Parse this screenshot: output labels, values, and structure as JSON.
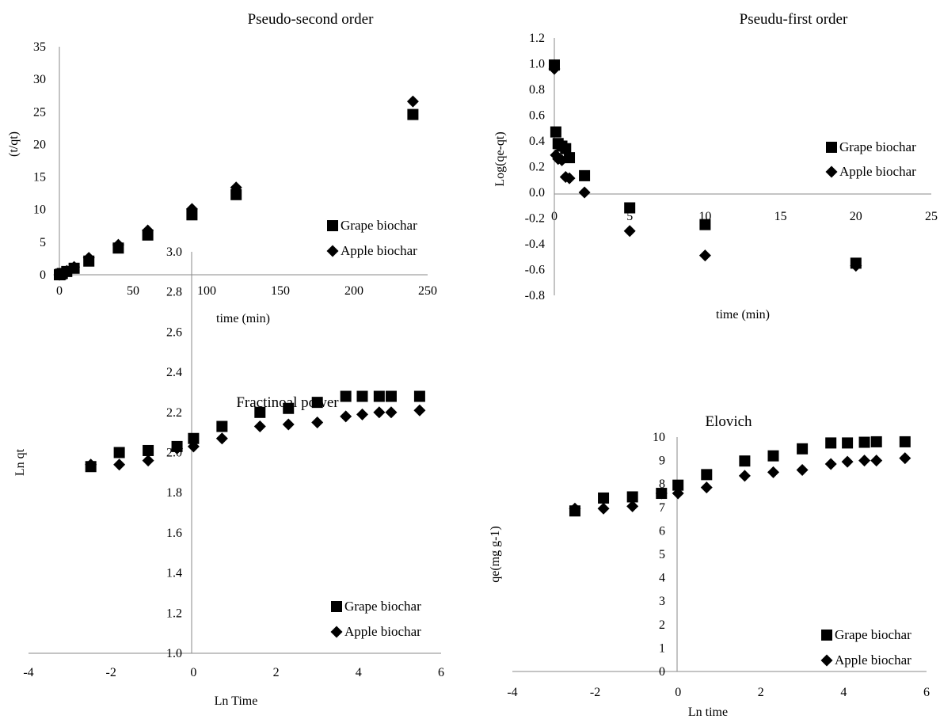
{
  "chart_data": [
    {
      "type": "scatter",
      "title": "Pseudo-second order",
      "xlabel": "time (min)",
      "ylabel": "(t/qt)",
      "xlim": [
        0,
        250
      ],
      "ylim": [
        0,
        35
      ],
      "xticks": [
        "0",
        "50",
        "100",
        "150",
        "200",
        "250"
      ],
      "yticks": [
        "0",
        "5",
        "10",
        "15",
        "20",
        "25",
        "30",
        "35"
      ],
      "legend_position": "right",
      "series": [
        {
          "name": "Grape biochar",
          "marker": "square",
          "x": [
            0,
            0.25,
            0.5,
            1,
            2,
            5,
            10,
            20,
            40,
            60,
            90,
            120,
            240
          ],
          "y": [
            0,
            0.02,
            0.05,
            0.1,
            0.2,
            0.5,
            1.0,
            2.1,
            4.1,
            6.1,
            9.2,
            12.3,
            24.6
          ]
        },
        {
          "name": "Apple biochar",
          "marker": "diamond",
          "x": [
            0,
            0.25,
            0.5,
            1,
            2,
            5,
            10,
            20,
            40,
            60,
            90,
            120,
            240
          ],
          "y": [
            0,
            0.03,
            0.06,
            0.12,
            0.25,
            0.6,
            1.2,
            2.6,
            4.6,
            6.8,
            10.1,
            13.4,
            26.6
          ]
        }
      ]
    },
    {
      "type": "scatter",
      "title": "Pseudu-first order",
      "xlabel": "time (min)",
      "ylabel": "Log(qe-qt)",
      "xlim": [
        0,
        25
      ],
      "ylim": [
        -0.8,
        1.2
      ],
      "xticks": [
        "0",
        "5",
        "10",
        "15",
        "20",
        "25"
      ],
      "yticks": [
        "-0.8",
        "-0.6",
        "-0.4",
        "-0.2",
        "0.0",
        "0.2",
        "0.4",
        "0.6",
        "0.8",
        "1.0",
        "1.2"
      ],
      "legend_position": "right",
      "series": [
        {
          "name": "Grape biochar",
          "marker": "square",
          "x": [
            0,
            0.1,
            0.25,
            0.5,
            0.75,
            1,
            2,
            5,
            10,
            20
          ],
          "y": [
            0.99,
            0.47,
            0.38,
            0.36,
            0.34,
            0.27,
            0.13,
            -0.12,
            -0.25,
            -0.55
          ]
        },
        {
          "name": "Apple biochar",
          "marker": "diamond",
          "x": [
            0,
            0.1,
            0.25,
            0.5,
            0.75,
            1,
            2,
            5,
            10,
            20
          ],
          "y": [
            0.96,
            0.29,
            0.26,
            0.25,
            0.12,
            0.11,
            0.0,
            -0.3,
            -0.49,
            -0.57
          ]
        }
      ]
    },
    {
      "type": "scatter",
      "title": "Fractinoal power",
      "xlabel": "Ln Time",
      "ylabel": "Ln qt",
      "xlim": [
        -4,
        6
      ],
      "ylim": [
        1.0,
        3.0
      ],
      "xticks": [
        "-4",
        "-2",
        "0",
        "2",
        "4",
        "6"
      ],
      "yticks": [
        "1.0",
        "1.2",
        "1.4",
        "1.6",
        "1.8",
        "2.0",
        "2.2",
        "2.4",
        "2.6",
        "2.8",
        "3.0"
      ],
      "legend_position": "bottom-right",
      "series": [
        {
          "name": "Grape biochar",
          "marker": "square",
          "x": [
            -2.49,
            -1.8,
            -1.1,
            -0.4,
            0,
            0.69,
            1.61,
            2.3,
            3.0,
            3.69,
            4.09,
            4.5,
            4.79,
            5.48
          ],
          "y": [
            1.93,
            2.0,
            2.01,
            2.03,
            2.07,
            2.13,
            2.2,
            2.22,
            2.25,
            2.28,
            2.28,
            2.28,
            2.28,
            2.28
          ]
        },
        {
          "name": "Apple biochar",
          "marker": "diamond",
          "x": [
            -2.49,
            -1.8,
            -1.1,
            -0.4,
            0,
            0.69,
            1.61,
            2.3,
            3.0,
            3.69,
            4.09,
            4.5,
            4.79,
            5.48
          ],
          "y": [
            1.94,
            1.94,
            1.96,
            2.02,
            2.03,
            2.07,
            2.13,
            2.14,
            2.15,
            2.18,
            2.19,
            2.2,
            2.2,
            2.21
          ]
        }
      ]
    },
    {
      "type": "scatter",
      "title": "Elovich",
      "xlabel": "Ln time",
      "ylabel": "qe(mg g-1)",
      "xlim": [
        -4,
        6
      ],
      "ylim": [
        0,
        10
      ],
      "xticks": [
        "-4",
        "-2",
        "0",
        "2",
        "4",
        "6"
      ],
      "yticks": [
        "0",
        "1",
        "2",
        "3",
        "4",
        "5",
        "6",
        "7",
        "8",
        "9",
        "10"
      ],
      "legend_position": "bottom-right",
      "series": [
        {
          "name": "Grape biochar",
          "marker": "square",
          "x": [
            -2.49,
            -1.8,
            -1.1,
            -0.4,
            0,
            0.69,
            1.61,
            2.3,
            3.0,
            3.69,
            4.09,
            4.5,
            4.79,
            5.48
          ],
          "y": [
            6.85,
            7.4,
            7.45,
            7.6,
            7.95,
            8.4,
            8.98,
            9.2,
            9.5,
            9.75,
            9.75,
            9.78,
            9.8,
            9.8
          ]
        },
        {
          "name": "Apple biochar",
          "marker": "diamond",
          "x": [
            -2.49,
            -1.8,
            -1.1,
            -0.4,
            0,
            0.69,
            1.61,
            2.3,
            3.0,
            3.69,
            4.09,
            4.5,
            4.79,
            5.48
          ],
          "y": [
            6.95,
            6.95,
            7.05,
            7.6,
            7.6,
            7.85,
            8.35,
            8.5,
            8.6,
            8.85,
            8.95,
            9.0,
            9.0,
            9.1
          ]
        }
      ]
    }
  ]
}
